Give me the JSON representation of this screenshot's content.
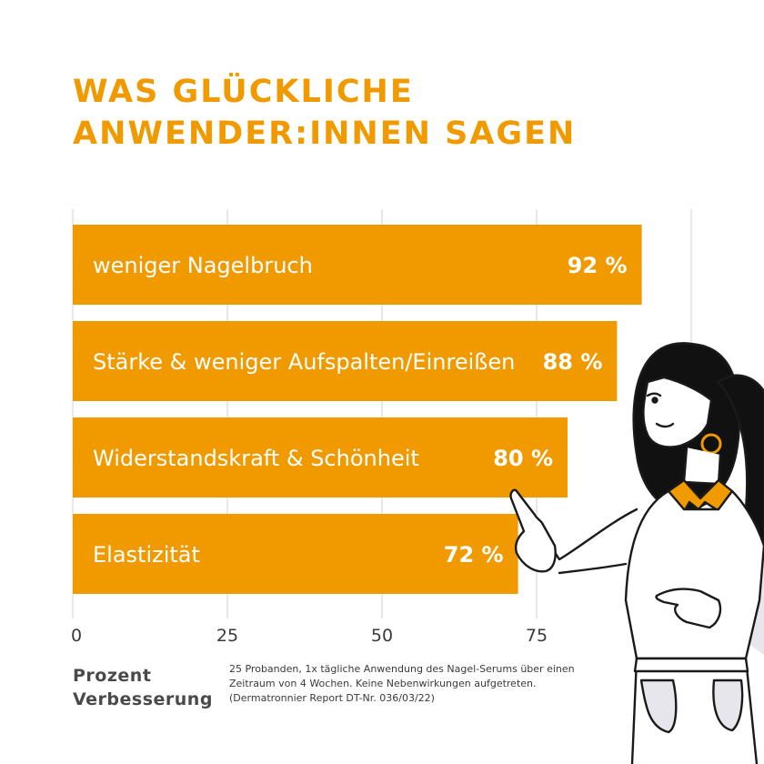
{
  "title": {
    "line1": "WAS GLÜCKLICHE",
    "line2": "ANWENDER:INNEN SAGEN"
  },
  "chart_data": {
    "type": "bar",
    "orientation": "horizontal",
    "categories": [
      "weniger Nagelbruch",
      "Stärke & weniger Aufspalten/Einreißen",
      "Widerstandskraft & Schönheit",
      "Elastizität"
    ],
    "values": [
      92,
      88,
      80,
      72
    ],
    "value_labels": [
      "92 %",
      "88 %",
      "80 %",
      "72 %"
    ],
    "xticks": [
      0,
      25,
      50,
      75
    ],
    "tick_labels": [
      "0",
      "25",
      "50",
      "75"
    ],
    "xlim": [
      0,
      100
    ],
    "grid": true,
    "xlabel_line1": "Prozent",
    "xlabel_line2": "Verbesserung",
    "bar_color": "#f09a00"
  },
  "footnote": "25 Probanden, 1x tägliche Anwendung des Nagel-Serums über einen Zeitraum von 4 Wochen. Keine Nebenwirkungen aufgetreten. (Dermatronnier Report DT-Nr. 036/03/22)",
  "colors": {
    "accent": "#f09a00",
    "text": "#3a3a3a",
    "grid": "#d9d9d9"
  }
}
